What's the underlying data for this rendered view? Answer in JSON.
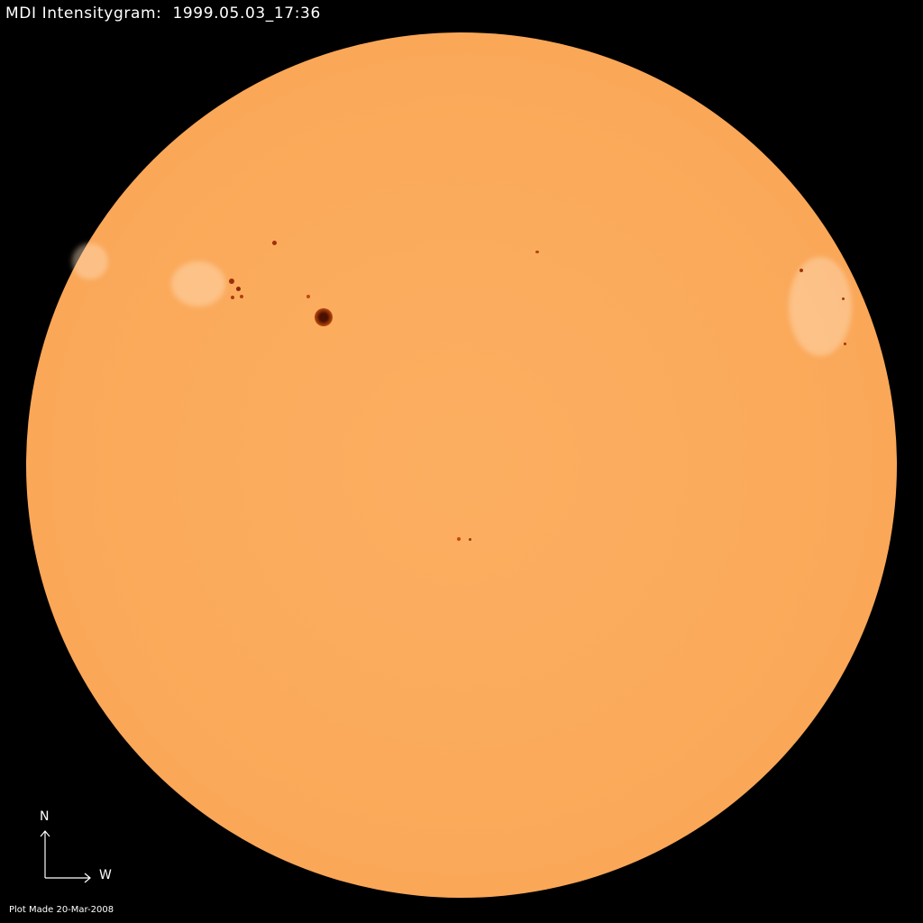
{
  "title": "MDI Intensitygram:  1999.05.03_17:36",
  "compass": {
    "north": "N",
    "west": "W"
  },
  "footer": "Plot Made 20-Mar-2008",
  "colors": {
    "background": "#000000",
    "disk": "#fbaa5b",
    "sunspot_umbra": "#5a1500",
    "sunspot_penumbra": "#c0500f",
    "text": "#ffffff"
  }
}
